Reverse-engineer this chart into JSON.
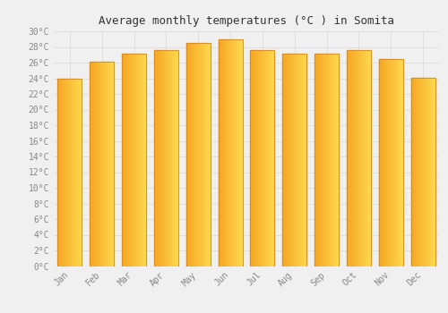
{
  "title": "Average monthly temperatures (°C ) in Somita",
  "months": [
    "Jan",
    "Feb",
    "Mar",
    "Apr",
    "May",
    "Jun",
    "Jul",
    "Aug",
    "Sep",
    "Oct",
    "Nov",
    "Dec"
  ],
  "values": [
    24.0,
    26.1,
    27.1,
    27.6,
    28.5,
    29.0,
    27.6,
    27.1,
    27.1,
    27.6,
    26.5,
    24.1
  ],
  "bar_color_left": "#F5A623",
  "bar_color_right": "#FDD84E",
  "bar_edge_color": "#D4881E",
  "ylim": [
    0,
    30
  ],
  "yticks": [
    0,
    2,
    4,
    6,
    8,
    10,
    12,
    14,
    16,
    18,
    20,
    22,
    24,
    26,
    28,
    30
  ],
  "background_color": "#f0f0f0",
  "grid_color": "#d8d8d8",
  "title_fontsize": 9,
  "tick_fontsize": 7,
  "tick_color": "#888888",
  "title_color": "#333333"
}
